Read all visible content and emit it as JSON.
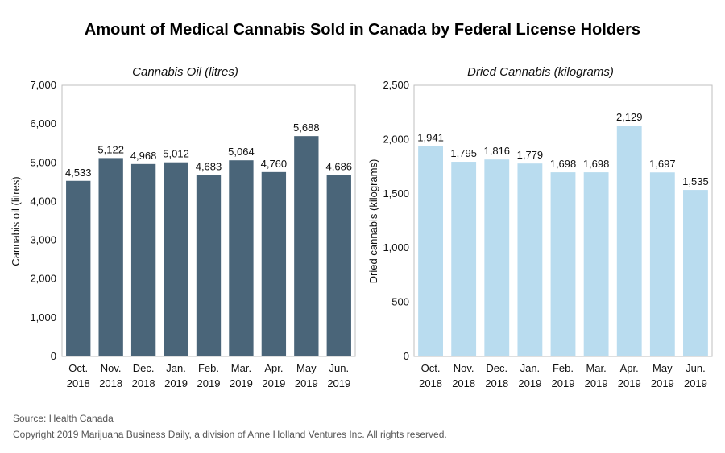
{
  "title": "Amount of Medical Cannabis Sold in Canada by Federal License Holders",
  "footer": {
    "source": "Source: Health Canada",
    "copyright": "Copyright 2019 Marijuana Business Daily, a division of Anne Holland Ventures Inc. All rights reserved."
  },
  "colors": {
    "oil_bars": "#4a6579",
    "dried_bars": "#b9dcef",
    "frame": "#bfbfbf"
  },
  "chart_data": [
    {
      "type": "bar",
      "subtitle": "Cannabis Oil (litres)",
      "ylabel": "Cannabis oil (litres)",
      "xlabel": "",
      "categories": [
        [
          "Oct.",
          "2018"
        ],
        [
          "Nov.",
          "2018"
        ],
        [
          "Dec.",
          "2018"
        ],
        [
          "Jan.",
          "2019"
        ],
        [
          "Feb.",
          "2019"
        ],
        [
          "Mar.",
          "2019"
        ],
        [
          "Apr.",
          "2019"
        ],
        [
          "May",
          "2019"
        ],
        [
          "Jun.",
          "2019"
        ]
      ],
      "values": [
        4533,
        5122,
        4968,
        5012,
        4683,
        5064,
        4760,
        5688,
        4686
      ],
      "ylim": [
        0,
        7000
      ],
      "yticks": [
        0,
        1000,
        2000,
        3000,
        4000,
        5000,
        6000,
        7000
      ],
      "grid": false,
      "legend": "none"
    },
    {
      "type": "bar",
      "subtitle": "Dried Cannabis (kilograms)",
      "ylabel": "Dried cannabis (kilograms)",
      "xlabel": "",
      "categories": [
        [
          "Oct.",
          "2018"
        ],
        [
          "Nov.",
          "2018"
        ],
        [
          "Dec.",
          "2018"
        ],
        [
          "Jan.",
          "2019"
        ],
        [
          "Feb.",
          "2019"
        ],
        [
          "Mar.",
          "2019"
        ],
        [
          "Apr.",
          "2019"
        ],
        [
          "May",
          "2019"
        ],
        [
          "Jun.",
          "2019"
        ]
      ],
      "values": [
        1941,
        1795,
        1816,
        1779,
        1698,
        1698,
        2129,
        1697,
        1535
      ],
      "ylim": [
        0,
        2500
      ],
      "yticks": [
        0,
        500,
        1000,
        1500,
        2000,
        2500
      ],
      "grid": false,
      "legend": "none"
    }
  ]
}
